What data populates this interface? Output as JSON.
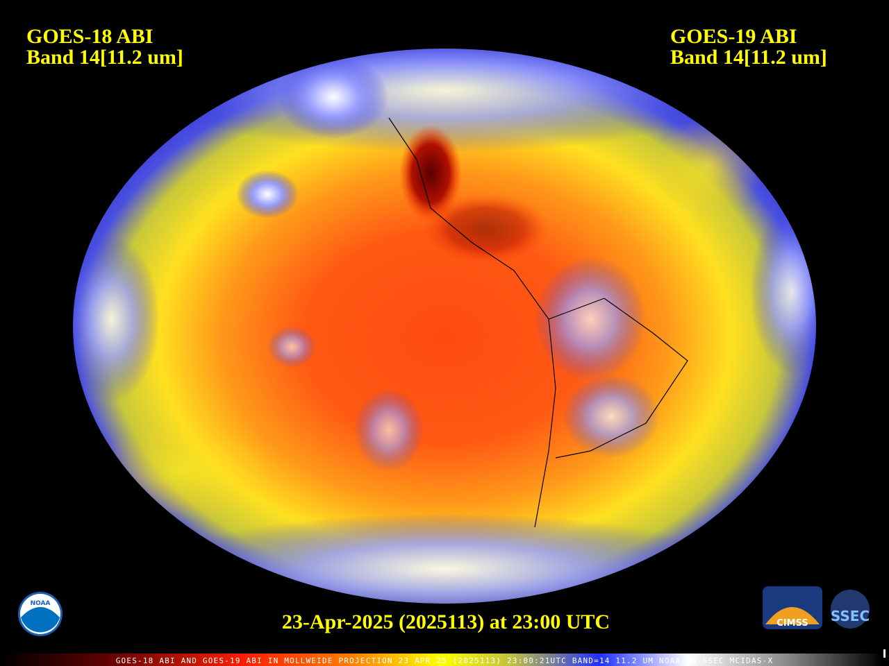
{
  "header": {
    "left": {
      "line1": "GOES-18 ABI",
      "line2": "Band 14[11.2 um]"
    },
    "right": {
      "line1": "GOES-19 ABI",
      "line2": "Band 14[11.2 um]"
    }
  },
  "timestamp": "23-Apr-2025 (2025113) at 23:00 UTC",
  "footer": "GOES-18 ABI AND GOES-19 ABI IN MOLLWEIDE PROJECTION 23 APR 25 (2025113) 23:00:21UTC BAND=14 11.2 UM NOAA UW-SSEC MCIDAS-X",
  "logos": {
    "noaa": "NOAA",
    "cimss": "CIMSS",
    "ssec": "SSEC"
  }
}
